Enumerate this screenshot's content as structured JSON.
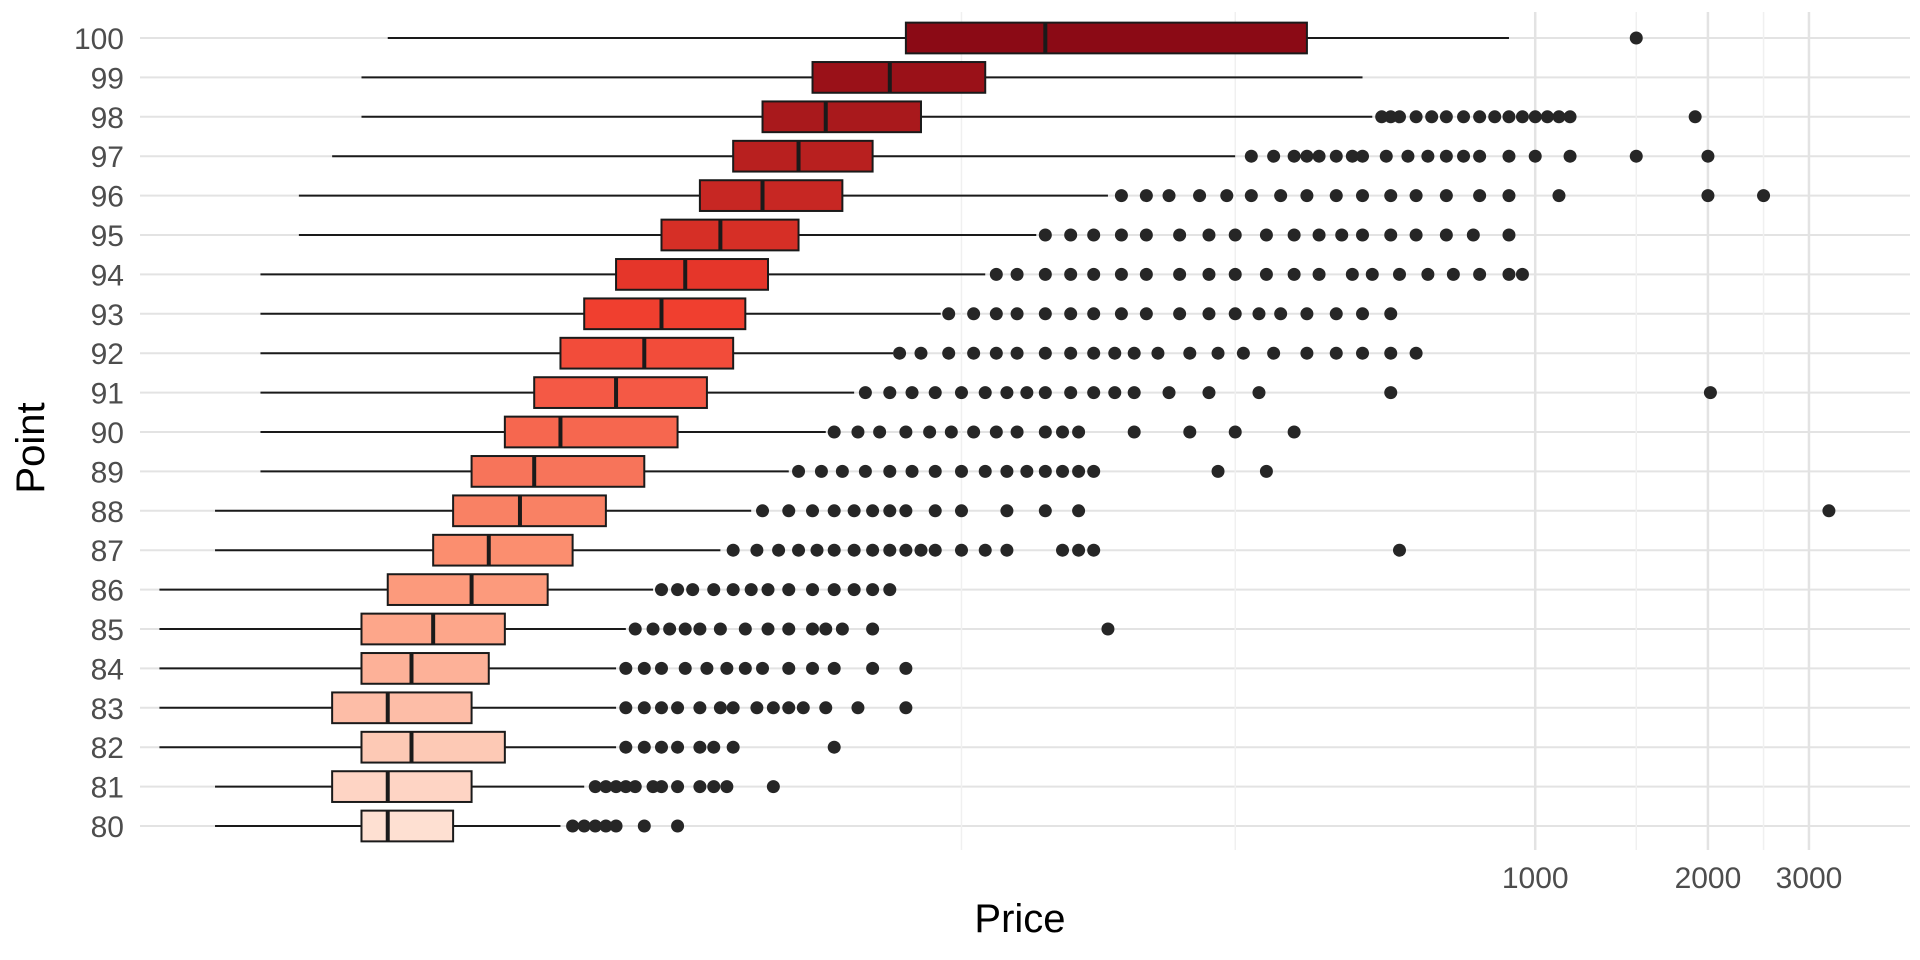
{
  "chart_data": {
    "type": "boxplot",
    "orientation": "horizontal",
    "xlabel": "Price",
    "ylabel": "Point",
    "x_scale": "log10",
    "x_range": [
      3.7,
      4500
    ],
    "x_ticks": [
      1000,
      2000,
      3000
    ],
    "x_tick_labels": [
      "1000",
      "2000",
      "3000"
    ],
    "x_minor_gridlines": [
      100,
      300,
      1500,
      2500
    ],
    "grid": true,
    "legend": "none",
    "box_colors": {
      "low": "#FEE0D2",
      "high": "#8B0A15"
    },
    "categories": [
      "80",
      "81",
      "82",
      "83",
      "84",
      "85",
      "86",
      "87",
      "88",
      "89",
      "90",
      "91",
      "92",
      "93",
      "94",
      "95",
      "96",
      "97",
      "98",
      "99",
      "100"
    ],
    "boxes": [
      {
        "point": "80",
        "whisker_low": 5,
        "q1": 9,
        "median": 10,
        "q3": 13,
        "whisker_high": 20,
        "outliers": [
          21,
          22,
          23,
          24,
          25,
          28,
          32
        ]
      },
      {
        "point": "81",
        "whisker_low": 5,
        "q1": 8,
        "median": 10,
        "q3": 14,
        "whisker_high": 22,
        "outliers": [
          23,
          24,
          25,
          26,
          27,
          29,
          30,
          32,
          35,
          37,
          39,
          47
        ]
      },
      {
        "point": "82",
        "whisker_low": 4,
        "q1": 9,
        "median": 11,
        "q3": 16,
        "whisker_high": 25,
        "outliers": [
          26,
          28,
          30,
          32,
          35,
          37,
          40,
          60
        ]
      },
      {
        "point": "83",
        "whisker_low": 4,
        "q1": 8,
        "median": 10,
        "q3": 14,
        "whisker_high": 25,
        "outliers": [
          26,
          28,
          30,
          32,
          35,
          38,
          40,
          44,
          47,
          50,
          53,
          58,
          66,
          80
        ]
      },
      {
        "point": "84",
        "whisker_low": 4,
        "q1": 9,
        "median": 11,
        "q3": 15,
        "whisker_high": 25,
        "outliers": [
          26,
          28,
          30,
          33,
          36,
          39,
          42,
          45,
          50,
          55,
          60,
          70,
          80
        ]
      },
      {
        "point": "85",
        "whisker_low": 4,
        "q1": 9,
        "median": 12,
        "q3": 16,
        "whisker_high": 26,
        "outliers": [
          27,
          29,
          31,
          33,
          35,
          38,
          42,
          46,
          50,
          55,
          58,
          62,
          70,
          180
        ]
      },
      {
        "point": "86",
        "whisker_low": 4,
        "q1": 10,
        "median": 14,
        "q3": 19,
        "whisker_high": 29,
        "outliers": [
          30,
          32,
          34,
          37,
          40,
          43,
          46,
          50,
          55,
          60,
          65,
          70,
          75
        ]
      },
      {
        "point": "87",
        "whisker_low": 5,
        "q1": 12,
        "median": 15,
        "q3": 21,
        "whisker_high": 38,
        "outliers": [
          40,
          44,
          48,
          52,
          56,
          60,
          65,
          70,
          75,
          80,
          85,
          90,
          100,
          110,
          120,
          150,
          160,
          170,
          580
        ]
      },
      {
        "point": "88",
        "whisker_low": 5,
        "q1": 13,
        "median": 17,
        "q3": 24,
        "whisker_high": 43,
        "outliers": [
          45,
          50,
          55,
          60,
          65,
          70,
          75,
          80,
          90,
          100,
          120,
          140,
          160,
          3250
        ]
      },
      {
        "point": "89",
        "whisker_low": 6,
        "q1": 14,
        "median": 18,
        "q3": 28,
        "whisker_high": 50,
        "outliers": [
          52,
          57,
          62,
          68,
          75,
          82,
          90,
          100,
          110,
          120,
          130,
          140,
          150,
          160,
          170,
          280,
          340
        ]
      },
      {
        "point": "90",
        "whisker_low": 6,
        "q1": 16,
        "median": 20,
        "q3": 32,
        "whisker_high": 58,
        "outliers": [
          60,
          66,
          72,
          80,
          88,
          96,
          105,
          115,
          125,
          140,
          150,
          160,
          200,
          250,
          300,
          380
        ]
      },
      {
        "point": "91",
        "whisker_low": 6,
        "q1": 18,
        "median": 25,
        "q3": 36,
        "whisker_high": 65,
        "outliers": [
          68,
          75,
          82,
          90,
          100,
          110,
          120,
          130,
          140,
          155,
          170,
          185,
          200,
          230,
          270,
          330,
          560,
          2020
        ]
      },
      {
        "point": "92",
        "whisker_low": 6,
        "q1": 20,
        "median": 28,
        "q3": 40,
        "whisker_high": 76,
        "outliers": [
          78,
          85,
          95,
          105,
          115,
          125,
          140,
          155,
          170,
          185,
          200,
          220,
          250,
          280,
          310,
          350,
          400,
          450,
          500,
          560,
          620
        ]
      },
      {
        "point": "93",
        "whisker_low": 6,
        "q1": 22,
        "median": 30,
        "q3": 42,
        "whisker_high": 92,
        "outliers": [
          95,
          105,
          115,
          125,
          140,
          155,
          170,
          190,
          210,
          240,
          270,
          300,
          330,
          360,
          400,
          450,
          500,
          560
        ]
      },
      {
        "point": "94",
        "whisker_low": 6,
        "q1": 25,
        "median": 33,
        "q3": 46,
        "whisker_high": 110,
        "outliers": [
          115,
          125,
          140,
          155,
          170,
          190,
          210,
          240,
          270,
          300,
          340,
          380,
          420,
          480,
          520,
          580,
          650,
          720,
          800,
          900,
          950
        ]
      },
      {
        "point": "95",
        "whisker_low": 7,
        "q1": 30,
        "median": 38,
        "q3": 52,
        "whisker_high": 135,
        "outliers": [
          140,
          155,
          170,
          190,
          210,
          240,
          270,
          300,
          340,
          380,
          420,
          460,
          500,
          560,
          620,
          700,
          780,
          900
        ]
      },
      {
        "point": "96",
        "whisker_low": 7,
        "q1": 35,
        "median": 45,
        "q3": 62,
        "whisker_high": 180,
        "outliers": [
          190,
          210,
          230,
          260,
          290,
          320,
          360,
          400,
          450,
          500,
          560,
          620,
          700,
          800,
          900,
          1100,
          2000,
          2500
        ]
      },
      {
        "point": "97",
        "whisker_low": 8,
        "q1": 40,
        "median": 52,
        "q3": 70,
        "whisker_high": 300,
        "outliers": [
          320,
          350,
          380,
          400,
          420,
          450,
          480,
          500,
          550,
          600,
          650,
          700,
          750,
          800,
          900,
          1000,
          1150,
          1500,
          2000
        ]
      },
      {
        "point": "98",
        "whisker_low": 9,
        "q1": 45,
        "median": 58,
        "q3": 85,
        "whisker_high": 520,
        "outliers": [
          540,
          560,
          580,
          620,
          660,
          700,
          750,
          800,
          850,
          900,
          950,
          1000,
          1050,
          1100,
          1150,
          1900
        ]
      },
      {
        "point": "99",
        "whisker_low": 9,
        "q1": 55,
        "median": 75,
        "q3": 110,
        "whisker_high": 500,
        "outliers": []
      },
      {
        "point": "100",
        "whisker_low": 10,
        "q1": 80,
        "median": 140,
        "q3": 400,
        "whisker_high": 900,
        "outliers": [
          1500
        ]
      }
    ]
  }
}
